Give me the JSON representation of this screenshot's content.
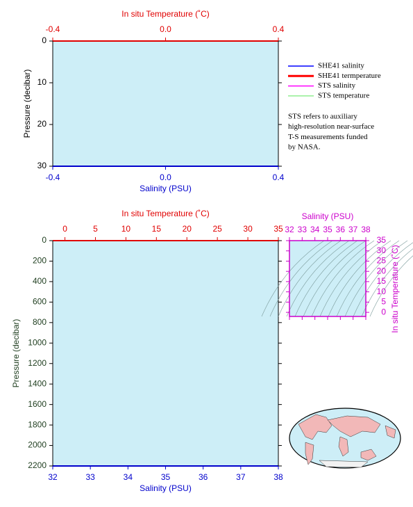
{
  "chart_data": [
    {
      "type": "line",
      "x_label": "Salinity (PSU)",
      "x2_label": "In situ Temperature (˚C)",
      "y_label": "Pressure (decibar)",
      "xlim": [
        -0.4,
        0.4
      ],
      "xticks": [
        {
          "value": -0.4,
          "label": "-0.4"
        },
        {
          "value": 0,
          "label": "0.0"
        },
        {
          "value": 0.4,
          "label": "0.4"
        }
      ],
      "x2lim": [
        -0.4,
        0.4
      ],
      "x2ticks": [
        {
          "value": -0.4,
          "label": "-0.4"
        },
        {
          "value": 0,
          "label": "0.0"
        },
        {
          "value": 0.4,
          "label": "0.4"
        }
      ],
      "ylim": [
        30,
        0
      ],
      "yticks": [
        0,
        10,
        20,
        30
      ],
      "series": [
        {
          "name": "SHE41 salinity",
          "color": "#0000ff",
          "values": []
        },
        {
          "name": "SHE41 termperature",
          "color": "#ff0000",
          "values": []
        },
        {
          "name": "STS salinity",
          "color": "#ff00ff",
          "values": []
        },
        {
          "name": "STS temperature",
          "color": "#90ee90",
          "values": []
        }
      ],
      "note": [
        "STS refers to auxiliary",
        "high-resolution near-surface",
        "T-S measurements funded",
        "by NASA."
      ]
    },
    {
      "type": "line",
      "x_label": "Salinity (PSU)",
      "x2_label": "In situ Temperature (˚C)",
      "y_label": "Pressure (decibar)",
      "xlim": [
        32,
        38
      ],
      "xticks": [
        32,
        33,
        34,
        35,
        36,
        37,
        38
      ],
      "x2lim": [
        -2,
        35
      ],
      "x2ticks": [
        0,
        5,
        10,
        15,
        20,
        25,
        30,
        35
      ],
      "ylim": [
        2200,
        0
      ],
      "yticks": [
        0,
        200,
        400,
        600,
        800,
        1000,
        1200,
        1400,
        1600,
        1800,
        2000,
        2200
      ]
    },
    {
      "type": "scatter",
      "x_label": "Salinity (PSU)",
      "y_label": "In situ Temperature (˚C)",
      "xlim": [
        32,
        38
      ],
      "xticks": [
        32,
        33,
        34,
        35,
        36,
        37,
        38
      ],
      "ylim": [
        -2,
        35
      ],
      "yticks": [
        0,
        5,
        10,
        15,
        20,
        25,
        30,
        35
      ]
    }
  ]
}
